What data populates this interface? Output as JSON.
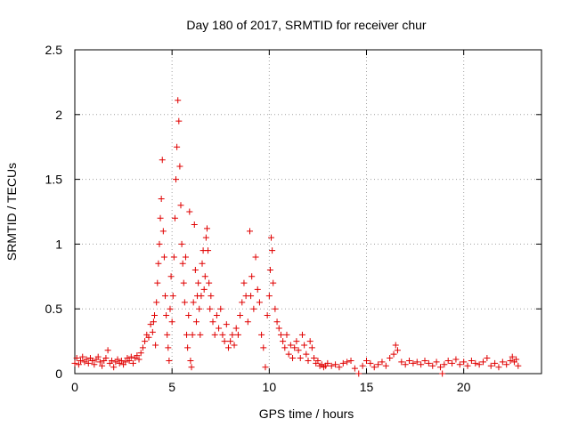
{
  "chart_data": {
    "type": "scatter",
    "title": "Day 180 of 2017, SRMTID for receiver chur",
    "xlabel": "GPS time / hours",
    "ylabel": "SRMTID / TECUs",
    "xlim": [
      0,
      24
    ],
    "ylim": [
      0,
      2.5
    ],
    "xticks": [
      "0",
      "5",
      "10",
      "15",
      "20"
    ],
    "xtick_values": [
      0,
      5,
      10,
      15,
      20
    ],
    "yticks": [
      "0",
      "0.5",
      "1",
      "1.5",
      "2",
      "2.5"
    ],
    "ytick_values": [
      0,
      0.5,
      1,
      1.5,
      2,
      2.5
    ],
    "grid": true,
    "marker": "plus",
    "color": "#e00000",
    "series": [
      {
        "name": "SRMTID",
        "points": [
          [
            0.0,
            0.08
          ],
          [
            0.1,
            0.12
          ],
          [
            0.2,
            0.07
          ],
          [
            0.3,
            0.1
          ],
          [
            0.4,
            0.13
          ],
          [
            0.5,
            0.09
          ],
          [
            0.6,
            0.11
          ],
          [
            0.7,
            0.08
          ],
          [
            0.8,
            0.12
          ],
          [
            0.9,
            0.1
          ],
          [
            1.0,
            0.07
          ],
          [
            1.1,
            0.11
          ],
          [
            1.2,
            0.13
          ],
          [
            1.3,
            0.09
          ],
          [
            1.4,
            0.06
          ],
          [
            1.5,
            0.1
          ],
          [
            1.6,
            0.12
          ],
          [
            1.7,
            0.18
          ],
          [
            1.8,
            0.08
          ],
          [
            1.9,
            0.1
          ],
          [
            2.0,
            0.05
          ],
          [
            2.1,
            0.09
          ],
          [
            2.2,
            0.11
          ],
          [
            2.3,
            0.08
          ],
          [
            2.4,
            0.1
          ],
          [
            2.5,
            0.07
          ],
          [
            2.6,
            0.09
          ],
          [
            2.7,
            0.12
          ],
          [
            2.8,
            0.1
          ],
          [
            2.9,
            0.13
          ],
          [
            3.0,
            0.08
          ],
          [
            3.1,
            0.12
          ],
          [
            3.2,
            0.14
          ],
          [
            3.3,
            0.11
          ],
          [
            3.4,
            0.16
          ],
          [
            3.5,
            0.2
          ],
          [
            3.6,
            0.25
          ],
          [
            3.7,
            0.3
          ],
          [
            3.8,
            0.28
          ],
          [
            3.9,
            0.38
          ],
          [
            4.0,
            0.32
          ],
          [
            4.05,
            0.4
          ],
          [
            4.1,
            0.45
          ],
          [
            4.15,
            0.22
          ],
          [
            4.2,
            0.55
          ],
          [
            4.25,
            0.7
          ],
          [
            4.3,
            0.85
          ],
          [
            4.35,
            1.0
          ],
          [
            4.4,
            1.2
          ],
          [
            4.45,
            1.35
          ],
          [
            4.5,
            1.65
          ],
          [
            4.55,
            1.1
          ],
          [
            4.6,
            0.9
          ],
          [
            4.65,
            0.6
          ],
          [
            4.7,
            0.45
          ],
          [
            4.75,
            0.3
          ],
          [
            4.8,
            0.2
          ],
          [
            4.85,
            0.1
          ],
          [
            4.9,
            0.5
          ],
          [
            4.95,
            0.75
          ],
          [
            5.0,
            0.4
          ],
          [
            5.05,
            0.6
          ],
          [
            5.1,
            0.9
          ],
          [
            5.15,
            1.2
          ],
          [
            5.2,
            1.5
          ],
          [
            5.25,
            1.75
          ],
          [
            5.3,
            2.11
          ],
          [
            5.35,
            1.95
          ],
          [
            5.4,
            1.6
          ],
          [
            5.45,
            1.3
          ],
          [
            5.5,
            1.0
          ],
          [
            5.55,
            0.85
          ],
          [
            5.6,
            0.7
          ],
          [
            5.65,
            0.55
          ],
          [
            5.7,
            0.9
          ],
          [
            5.75,
            0.3
          ],
          [
            5.8,
            0.2
          ],
          [
            5.85,
            0.45
          ],
          [
            5.9,
            1.25
          ],
          [
            5.95,
            0.1
          ],
          [
            6.0,
            0.05
          ],
          [
            6.05,
            0.3
          ],
          [
            6.1,
            0.55
          ],
          [
            6.15,
            1.15
          ],
          [
            6.2,
            0.8
          ],
          [
            6.25,
            0.4
          ],
          [
            6.3,
            0.6
          ],
          [
            6.35,
            0.7
          ],
          [
            6.4,
            0.5
          ],
          [
            6.45,
            0.3
          ],
          [
            6.5,
            0.6
          ],
          [
            6.55,
            0.85
          ],
          [
            6.6,
            0.95
          ],
          [
            6.65,
            0.65
          ],
          [
            6.7,
            0.75
          ],
          [
            6.75,
            1.05
          ],
          [
            6.8,
            1.12
          ],
          [
            6.85,
            0.95
          ],
          [
            6.9,
            0.7
          ],
          [
            6.95,
            0.5
          ],
          [
            7.0,
            0.6
          ],
          [
            7.1,
            0.4
          ],
          [
            7.2,
            0.3
          ],
          [
            7.3,
            0.45
          ],
          [
            7.4,
            0.35
          ],
          [
            7.5,
            0.5
          ],
          [
            7.6,
            0.3
          ],
          [
            7.7,
            0.25
          ],
          [
            7.8,
            0.38
          ],
          [
            7.9,
            0.2
          ],
          [
            8.0,
            0.25
          ],
          [
            8.1,
            0.3
          ],
          [
            8.2,
            0.22
          ],
          [
            8.3,
            0.35
          ],
          [
            8.4,
            0.3
          ],
          [
            8.5,
            0.45
          ],
          [
            8.6,
            0.55
          ],
          [
            8.7,
            0.7
          ],
          [
            8.8,
            0.6
          ],
          [
            8.9,
            0.4
          ],
          [
            9.0,
            1.1
          ],
          [
            9.05,
            0.6
          ],
          [
            9.1,
            0.75
          ],
          [
            9.2,
            0.5
          ],
          [
            9.3,
            0.9
          ],
          [
            9.4,
            0.65
          ],
          [
            9.5,
            0.55
          ],
          [
            9.6,
            0.3
          ],
          [
            9.7,
            0.2
          ],
          [
            9.8,
            0.05
          ],
          [
            9.9,
            0.45
          ],
          [
            10.0,
            0.6
          ],
          [
            10.05,
            0.8
          ],
          [
            10.1,
            1.05
          ],
          [
            10.15,
            0.95
          ],
          [
            10.2,
            0.7
          ],
          [
            10.3,
            0.5
          ],
          [
            10.4,
            0.4
          ],
          [
            10.5,
            0.35
          ],
          [
            10.6,
            0.3
          ],
          [
            10.7,
            0.25
          ],
          [
            10.8,
            0.2
          ],
          [
            10.9,
            0.3
          ],
          [
            11.0,
            0.15
          ],
          [
            11.1,
            0.22
          ],
          [
            11.2,
            0.12
          ],
          [
            11.3,
            0.2
          ],
          [
            11.4,
            0.25
          ],
          [
            11.5,
            0.18
          ],
          [
            11.6,
            0.12
          ],
          [
            11.7,
            0.3
          ],
          [
            11.8,
            0.22
          ],
          [
            11.9,
            0.15
          ],
          [
            12.0,
            0.1
          ],
          [
            12.1,
            0.25
          ],
          [
            12.2,
            0.2
          ],
          [
            12.3,
            0.12
          ],
          [
            12.4,
            0.08
          ],
          [
            12.5,
            0.1
          ],
          [
            12.6,
            0.06
          ],
          [
            12.7,
            0.07
          ],
          [
            12.8,
            0.05
          ],
          [
            12.9,
            0.06
          ],
          [
            13.0,
            0.08
          ],
          [
            13.2,
            0.06
          ],
          [
            13.4,
            0.07
          ],
          [
            13.6,
            0.05
          ],
          [
            13.8,
            0.08
          ],
          [
            14.0,
            0.09
          ],
          [
            14.2,
            0.1
          ],
          [
            14.4,
            0.04
          ],
          [
            14.6,
            0.0
          ],
          [
            14.8,
            0.06
          ],
          [
            15.0,
            0.1
          ],
          [
            15.2,
            0.08
          ],
          [
            15.4,
            0.05
          ],
          [
            15.6,
            0.07
          ],
          [
            15.8,
            0.09
          ],
          [
            16.0,
            0.06
          ],
          [
            16.2,
            0.12
          ],
          [
            16.4,
            0.15
          ],
          [
            16.5,
            0.22
          ],
          [
            16.6,
            0.18
          ],
          [
            16.8,
            0.09
          ],
          [
            17.0,
            0.07
          ],
          [
            17.2,
            0.1
          ],
          [
            17.4,
            0.08
          ],
          [
            17.6,
            0.09
          ],
          [
            17.8,
            0.07
          ],
          [
            18.0,
            0.1
          ],
          [
            18.2,
            0.08
          ],
          [
            18.4,
            0.06
          ],
          [
            18.6,
            0.09
          ],
          [
            18.8,
            0.05
          ],
          [
            18.9,
            0.0
          ],
          [
            19.0,
            0.07
          ],
          [
            19.2,
            0.1
          ],
          [
            19.4,
            0.08
          ],
          [
            19.6,
            0.11
          ],
          [
            19.8,
            0.07
          ],
          [
            20.0,
            0.09
          ],
          [
            20.2,
            0.06
          ],
          [
            20.4,
            0.1
          ],
          [
            20.6,
            0.08
          ],
          [
            20.8,
            0.07
          ],
          [
            21.0,
            0.09
          ],
          [
            21.2,
            0.12
          ],
          [
            21.4,
            0.06
          ],
          [
            21.6,
            0.08
          ],
          [
            21.8,
            0.05
          ],
          [
            22.0,
            0.09
          ],
          [
            22.2,
            0.07
          ],
          [
            22.4,
            0.1
          ],
          [
            22.5,
            0.13
          ],
          [
            22.6,
            0.09
          ],
          [
            22.7,
            0.11
          ],
          [
            22.8,
            0.06
          ]
        ]
      }
    ]
  }
}
